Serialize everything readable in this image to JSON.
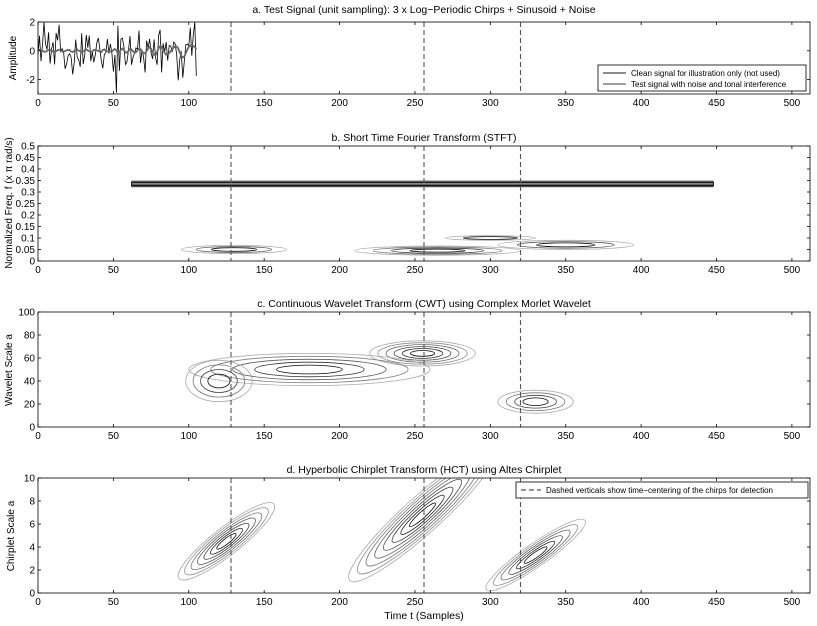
{
  "x_axis": {
    "label": "Time t (Samples)",
    "range": [
      0,
      512
    ],
    "ticks": [
      0,
      50,
      100,
      150,
      200,
      250,
      300,
      350,
      400,
      450,
      500
    ],
    "chirp_centers": [
      128,
      256,
      320
    ]
  },
  "chart_data": [
    {
      "type": "line",
      "title": "a. Test Signal (unit sampling): 3 x Log−Periodic Chirps + Sinusoid + Noise",
      "ylabel": "Amplitude",
      "xlabel": "",
      "xlim": [
        0,
        512
      ],
      "ylim": [
        -3,
        2
      ],
      "yticks": [
        -2,
        0,
        2
      ],
      "legend_position": "bottom-right",
      "series": [
        {
          "name": "Clean signal for illustration only (not used)",
          "color": "#666666"
        },
        {
          "name": "Test signal with noise and tonal interference",
          "color": "#000000"
        }
      ]
    },
    {
      "type": "contour",
      "title": "b. Short Time Fourier Transform (STFT)",
      "ylabel": "Normalized Freq. f (x π rad/s)",
      "xlabel": "",
      "xlim": [
        0,
        512
      ],
      "ylim": [
        0,
        0.5
      ],
      "yticks": [
        "0",
        "0.05",
        "0.1",
        "0.15",
        "0.2",
        "0.25",
        "0.3",
        "0.35",
        "0.4",
        "0.45",
        "0.5"
      ],
      "regions": [
        {
          "x0": 62,
          "x1": 448,
          "y": 0.335,
          "kind": "band"
        },
        {
          "x": 130,
          "y": 0.05,
          "sx": 35,
          "sy": 0.018,
          "n": 3
        },
        {
          "x": 265,
          "y": 0.045,
          "sx": 55,
          "sy": 0.02,
          "n": 4
        },
        {
          "x": 350,
          "y": 0.07,
          "sx": 45,
          "sy": 0.02,
          "n": 3
        },
        {
          "x": 300,
          "y": 0.1,
          "sx": 30,
          "sy": 0.01,
          "n": 2
        }
      ]
    },
    {
      "type": "contour",
      "title": "c. Continuous Wavelet Transform (CWT) using Complex Morlet Wavelet",
      "ylabel": "Wavelet Scale a",
      "xlabel": "",
      "xlim": [
        0,
        512
      ],
      "ylim": [
        0,
        100
      ],
      "yticks": [
        "0",
        "20",
        "40",
        "60",
        "80",
        "100"
      ],
      "regions": [
        {
          "x": 255,
          "y": 64,
          "sx": 35,
          "sy": 11,
          "n": 6
        },
        {
          "x": 180,
          "y": 50,
          "sx": 80,
          "sy": 14,
          "n": 5
        },
        {
          "x": 120,
          "y": 40,
          "sx": 22,
          "sy": 18,
          "n": 4
        },
        {
          "x": 330,
          "y": 22,
          "sx": 25,
          "sy": 10,
          "n": 4
        }
      ]
    },
    {
      "type": "contour",
      "title": "d. Hyperbolic Chirplet Transform (HCT) using Altes Chirplet",
      "ylabel": "Chirplet Scale a",
      "xlabel": "Time t (Samples)",
      "xlim": [
        0,
        512
      ],
      "ylim": [
        0,
        10
      ],
      "yticks": [
        "0",
        "2",
        "4",
        "6",
        "8",
        "10"
      ],
      "legend_position": "top-right",
      "legend": "Dashed verticals show time−centering of the chirps for detection",
      "regions": [
        {
          "x": 125,
          "y": 4.5,
          "sx": 40,
          "sy": 1.2,
          "n": 7,
          "angle": -38
        },
        {
          "x": 255,
          "y": 6.8,
          "sx": 65,
          "sy": 1.6,
          "n": 8,
          "angle": -42
        },
        {
          "x": 330,
          "y": 3.3,
          "sx": 40,
          "sy": 1.0,
          "n": 6,
          "angle": -35
        }
      ]
    }
  ]
}
